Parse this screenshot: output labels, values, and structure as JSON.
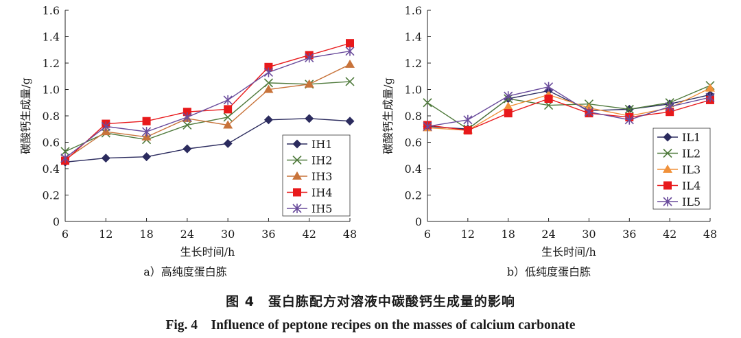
{
  "chart_data": [
    {
      "type": "line",
      "subtitle": "a）高纯度蛋白胨",
      "xlabel": "生长时间/h",
      "ylabel": "碳酸钙生成量/g",
      "x": [
        6,
        12,
        18,
        24,
        30,
        36,
        42,
        48
      ],
      "x_tick_labels": [
        "6",
        "12",
        "18",
        "24",
        "30",
        "36",
        "42",
        "48"
      ],
      "ylim": [
        0,
        1.6
      ],
      "y_ticks": [
        0,
        0.2,
        0.4,
        0.6,
        0.8,
        1.0,
        1.2,
        1.4,
        1.6
      ],
      "y_tick_labels": [
        "0",
        "0.2",
        "0.4",
        "0.6",
        "0.8",
        "1.0",
        "1.2",
        "1.4",
        "1.6"
      ],
      "legend_position": "bottom-right",
      "series": [
        {
          "name": "IH1",
          "marker": "diamond",
          "color": "#2b2b5e",
          "values": [
            0.45,
            0.48,
            0.49,
            0.55,
            0.59,
            0.77,
            0.78,
            0.76
          ]
        },
        {
          "name": "IH2",
          "marker": "x",
          "color": "#4f7a3c",
          "values": [
            0.53,
            0.67,
            0.62,
            0.73,
            0.79,
            1.05,
            1.04,
            1.06
          ]
        },
        {
          "name": "IH3",
          "marker": "triangle",
          "color": "#c8733a",
          "values": [
            0.47,
            0.68,
            0.64,
            0.78,
            0.73,
            1.0,
            1.04,
            1.19
          ]
        },
        {
          "name": "IH4",
          "marker": "square",
          "color": "#e8191b",
          "values": [
            0.46,
            0.74,
            0.76,
            0.83,
            0.85,
            1.17,
            1.26,
            1.35
          ]
        },
        {
          "name": "IH5",
          "marker": "star",
          "color": "#6a4c9c",
          "values": [
            0.48,
            0.72,
            0.68,
            0.79,
            0.92,
            1.13,
            1.24,
            1.29
          ]
        }
      ]
    },
    {
      "type": "line",
      "subtitle": "b）低纯度蛋白胨",
      "xlabel": "生长时间/h",
      "ylabel": "碳酸钙生成量/g",
      "x": [
        6,
        12,
        18,
        24,
        30,
        36,
        42,
        48
      ],
      "x_tick_labels": [
        "6",
        "12",
        "18",
        "24",
        "30",
        "36",
        "42",
        "48"
      ],
      "ylim": [
        0,
        1.6
      ],
      "y_ticks": [
        0,
        0.2,
        0.4,
        0.6,
        0.8,
        1.0,
        1.2,
        1.4,
        1.6
      ],
      "y_tick_labels": [
        "0",
        "0.2",
        "0.4",
        "0.6",
        "0.8",
        "1.0",
        "1.2",
        "1.4",
        "1.6"
      ],
      "legend_position": "bottom-right",
      "series": [
        {
          "name": "IL1",
          "marker": "diamond",
          "color": "#2b2b5e",
          "values": [
            0.72,
            0.7,
            0.93,
            0.99,
            0.84,
            0.85,
            0.89,
            0.96
          ]
        },
        {
          "name": "IL2",
          "marker": "x",
          "color": "#4f7a3c",
          "values": [
            0.9,
            0.7,
            0.93,
            0.88,
            0.89,
            0.85,
            0.9,
            1.03
          ]
        },
        {
          "name": "IL3",
          "marker": "triangle",
          "color": "#f0913a",
          "values": [
            0.71,
            0.69,
            0.87,
            0.96,
            0.86,
            0.8,
            0.86,
            1.01
          ]
        },
        {
          "name": "IL4",
          "marker": "square",
          "color": "#e8191b",
          "values": [
            0.73,
            0.69,
            0.82,
            0.93,
            0.82,
            0.79,
            0.83,
            0.92
          ]
        },
        {
          "name": "IL5",
          "marker": "star",
          "color": "#6a4c9c",
          "values": [
            0.72,
            0.77,
            0.95,
            1.02,
            0.83,
            0.77,
            0.87,
            0.94
          ]
        }
      ]
    }
  ],
  "caption": {
    "cn": "图 4　蛋白胨配方对溶液中碳酸钙生成量的影响",
    "en": "Fig. 4　Influence of peptone recipes on the masses of calcium carbonate"
  }
}
